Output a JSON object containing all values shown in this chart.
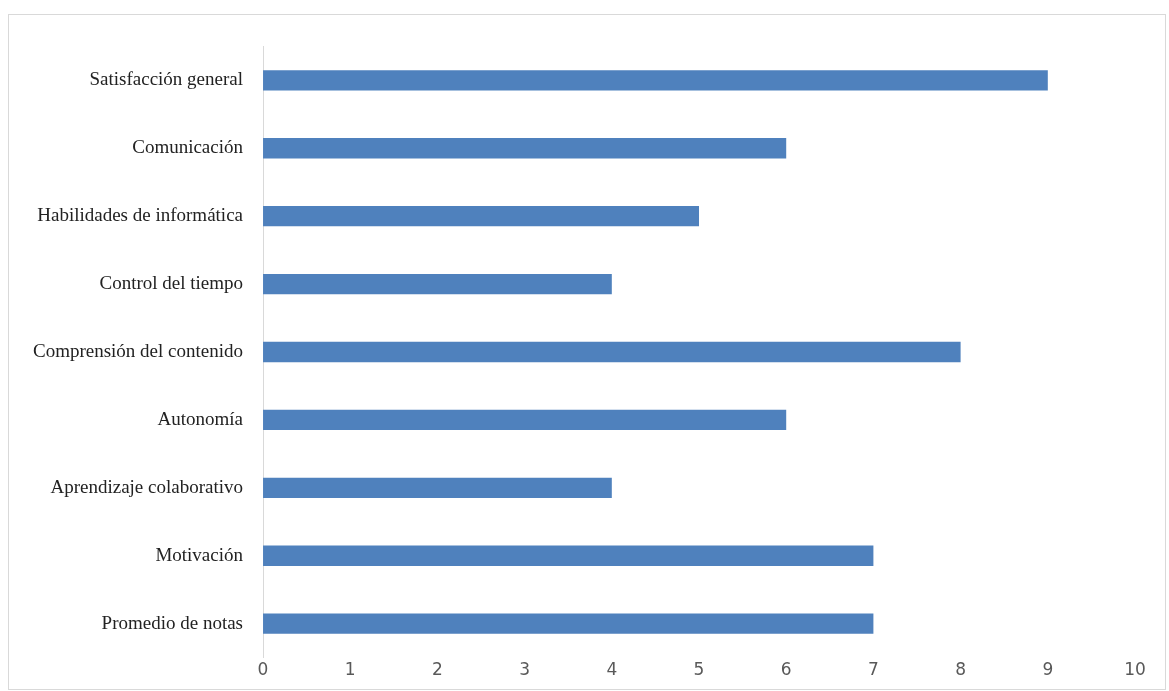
{
  "chart_data": {
    "type": "bar",
    "orientation": "horizontal",
    "categories": [
      "Satisfacción general",
      "Comunicación",
      "Habilidades de informática",
      "Control del tiempo",
      "Comprensión del contenido",
      "Autonomía",
      "Aprendizaje colaborativo",
      "Motivación",
      "Promedio de notas"
    ],
    "values": [
      9,
      6,
      5,
      4,
      8,
      6,
      4,
      7,
      7
    ],
    "color": "#4f81bd",
    "xlim": [
      0,
      10
    ],
    "xticks": [
      0,
      1,
      2,
      3,
      4,
      5,
      6,
      7,
      8,
      9,
      10
    ],
    "grid": false,
    "legend": false
  }
}
